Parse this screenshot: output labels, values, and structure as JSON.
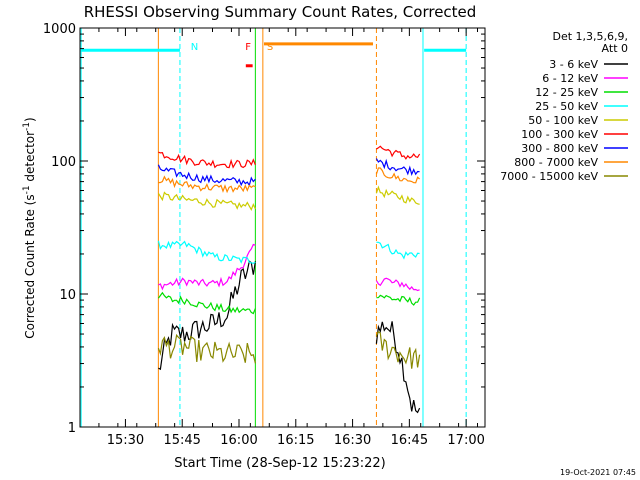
{
  "chart_data": {
    "type": "line",
    "title": "RHESSI Observing Summary Count Rates, Corrected",
    "xlabel": "Start Time (28-Sep-12 15:23:22)",
    "ylabel_main": "Corrected Count Rate (s",
    "ylabel_sup1": "-1",
    "ylabel_mid": " detector",
    "ylabel_sup2": "-1",
    "ylabel_end": ")",
    "y_scale": "log",
    "ylim": [
      1,
      1000
    ],
    "y_ticks": [
      {
        "value": 1,
        "label": "1"
      },
      {
        "value": 10,
        "label": "10"
      },
      {
        "value": 100,
        "label": "100"
      },
      {
        "value": 1000,
        "label": "1000"
      }
    ],
    "xlim_minutes": [
      15.3,
      17.083
    ],
    "x_ticks": [
      {
        "value": 15.5,
        "label": "15:30"
      },
      {
        "value": 15.75,
        "label": "15:45"
      },
      {
        "value": 16.0,
        "label": "16:00"
      },
      {
        "value": 16.25,
        "label": "16:15"
      },
      {
        "value": 16.5,
        "label": "16:30"
      },
      {
        "value": 16.75,
        "label": "16:45"
      },
      {
        "value": 17.0,
        "label": "17:00"
      }
    ],
    "legend_header": [
      "Det 1,3,5,6,9,",
      "Att 0"
    ],
    "legend_placement": "top-right",
    "series": [
      {
        "name": "3 - 6 keV",
        "color": "#000000",
        "seg1": [
          2.6,
          5,
          5,
          5.5,
          6,
          7,
          13,
          17
        ],
        "seg2": [
          5,
          6,
          5,
          3,
          1.5,
          1.2
        ]
      },
      {
        "name": "6 - 12 keV",
        "color": "#ff00ff",
        "seg1": [
          11.5,
          12,
          12.5,
          12,
          12,
          12.5,
          16,
          23
        ],
        "seg2": [
          12,
          13,
          12,
          12,
          11,
          11
        ]
      },
      {
        "name": "12 - 25 keV",
        "color": "#00dd00",
        "seg1": [
          9.8,
          9,
          9,
          8.3,
          8,
          7.6,
          7.5,
          7.5
        ],
        "seg2": [
          10,
          9.5,
          9.2,
          9,
          8.8,
          8.8
        ]
      },
      {
        "name": "25 - 50 keV",
        "color": "#00ffff",
        "seg1": [
          23.5,
          23,
          23.5,
          21,
          19,
          18.5,
          18,
          18
        ],
        "seg2": [
          25,
          23,
          21,
          19.5,
          20,
          20
        ]
      },
      {
        "name": "50 - 100 keV",
        "color": "#cccc00",
        "seg1": [
          55,
          53,
          51,
          50,
          48,
          47,
          46,
          46
        ],
        "seg2": [
          60,
          57,
          55,
          53,
          50,
          50
        ]
      },
      {
        "name": "100 - 300 keV",
        "color": "#ff0000",
        "seg1": [
          115,
          108,
          102,
          98,
          96,
          95,
          95,
          96
        ],
        "seg2": [
          130,
          122,
          115,
          110,
          108,
          108
        ]
      },
      {
        "name": "300 - 800 keV",
        "color": "#0000ff",
        "seg1": [
          88,
          82,
          78,
          74,
          72,
          71,
          70,
          70
        ],
        "seg2": [
          100,
          95,
          90,
          87,
          85,
          85
        ]
      },
      {
        "name": "800 - 7000 keV",
        "color": "#ff8800",
        "seg1": [
          73,
          69,
          66,
          64,
          63,
          62,
          62,
          62
        ],
        "seg2": [
          85,
          80,
          76,
          73,
          71,
          71
        ]
      },
      {
        "name": "7000 - 15000 keV",
        "color": "#888800",
        "seg1": [
          4.2,
          4,
          4,
          3.7,
          3.6,
          3.5,
          3.5,
          3.5
        ],
        "seg2": [
          4.5,
          4,
          3.8,
          3.5,
          3.3,
          3.3
        ]
      }
    ],
    "segment1_x": [
      15.645,
      16.072
    ],
    "segment2_x": [
      16.605,
      16.795
    ],
    "flag_labels": [
      {
        "text": "N",
        "color": "#00ffff",
        "x": 15.77
      },
      {
        "text": "F",
        "color": "#ff0000",
        "x": 16.01
      },
      {
        "text": "S",
        "color": "#ff8800",
        "x": 16.105
      }
    ],
    "flag_bars": [
      {
        "color": "#00ffff",
        "x0": 15.305,
        "x1": 15.74,
        "y": 680
      },
      {
        "color": "#00ffff",
        "x0": 16.815,
        "x1": 17.0,
        "y": 680
      },
      {
        "color": "#ff8800",
        "x0": 16.11,
        "x1": 16.59,
        "y": 760
      },
      {
        "color": "#ff0000",
        "x0": 16.03,
        "x1": 16.06,
        "y": 520
      }
    ],
    "vlines": [
      {
        "color": "#00ffff",
        "x": 15.305,
        "style": "solid"
      },
      {
        "color": "#00ffff",
        "x": 15.74,
        "style": "dashed"
      },
      {
        "color": "#00ffff",
        "x": 16.81,
        "style": "solid"
      },
      {
        "color": "#00ffff",
        "x": 17.0,
        "style": "dashed"
      },
      {
        "color": "#ff8800",
        "x": 15.645,
        "style": "solid"
      },
      {
        "color": "#ff8800",
        "x": 16.105,
        "style": "solid"
      },
      {
        "color": "#ff8800",
        "x": 16.605,
        "style": "dashed"
      },
      {
        "color": "#00dd00",
        "x": 16.072,
        "style": "solid"
      }
    ]
  },
  "footer_timestamp": "19-Oct-2021 07:45"
}
